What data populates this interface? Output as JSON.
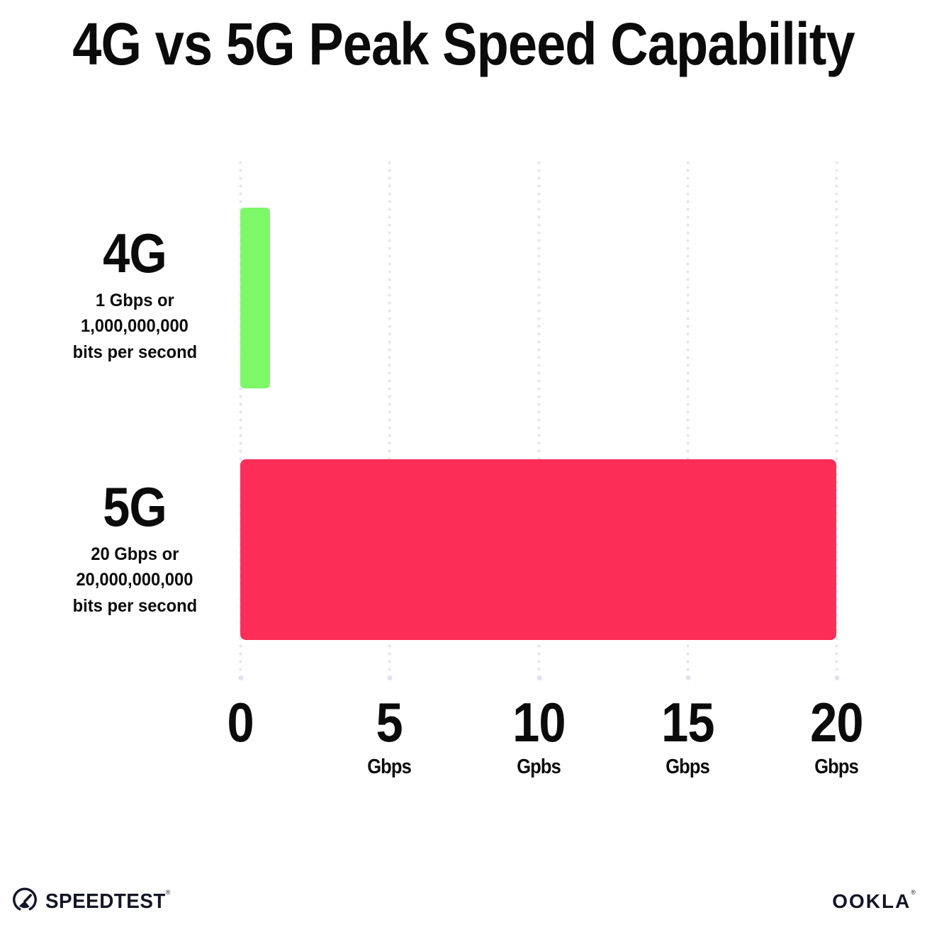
{
  "title": "4G vs 5G Peak Speed Capability",
  "chart_data": {
    "type": "bar",
    "orientation": "horizontal",
    "title": "4G vs 5G Peak Speed Capability",
    "categories": [
      "4G",
      "5G"
    ],
    "values": [
      1,
      20
    ],
    "value_unit": "Gbps",
    "xlim": [
      0,
      20
    ],
    "x_ticks": [
      {
        "label": "0",
        "unit": ""
      },
      {
        "label": "5",
        "unit": "Gbps"
      },
      {
        "label": "10",
        "unit": "Gpbs"
      },
      {
        "label": "15",
        "unit": "Gbps"
      },
      {
        "label": "20",
        "unit": "Gbps"
      }
    ],
    "bar_colors": [
      "#7DF869",
      "#FC2D57"
    ],
    "grid": "vertical-dotted",
    "gridline_color": "#E2E5F1",
    "legend": "none"
  },
  "rows": [
    {
      "label": "4G",
      "desc_lines": [
        "1 Gbps or",
        "1,000,000,000",
        "bits per second"
      ],
      "value_gbps": 1
    },
    {
      "label": "5G",
      "desc_lines": [
        "20 Gbps or",
        "20,000,000,000",
        "bits per second"
      ],
      "value_gbps": 20
    }
  ],
  "footer": {
    "speedtest_label": "SPEEDTEST",
    "speedtest_trademark": "®",
    "ookla_label": "OOKLA",
    "ookla_trademark": "®"
  }
}
